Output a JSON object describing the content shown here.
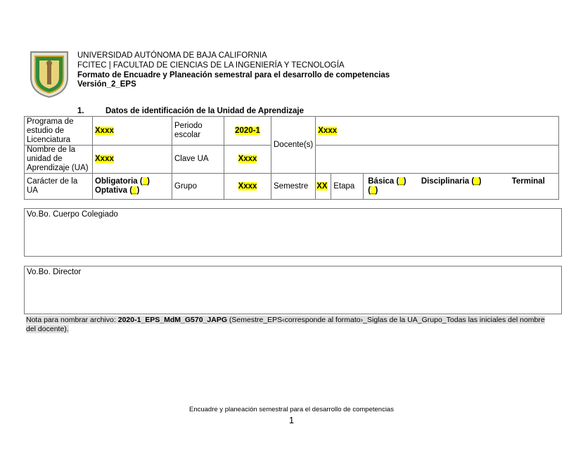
{
  "header": {
    "logo": "UABC coat of arms",
    "line1": "UNIVERSIDAD AUTÓNOMA DE BAJA CALIFORNIA",
    "line2": "FCITEC | FACULTAD DE CIENCIAS DE LA INGENIERÍA Y TECNOLOGÍA",
    "line3": "Formato de Encuadre y Planeación semestral para el desarrollo de competencias",
    "line4": "Versión_2_EPS"
  },
  "section": {
    "number": "1.",
    "title": "Datos de identificación de la Unidad de Aprendizaje"
  },
  "table": {
    "programa_label": "Programa de estudio de Licenciatura",
    "programa_value": "Xxxx",
    "periodo_label": "Periodo escolar",
    "periodo_value": "2020-1",
    "docente_label": "Docente(s)",
    "docente_value": "Xxxx",
    "nombre_label": "Nombre de la unidad de Aprendizaje (UA)",
    "nombre_value": "Xxxx",
    "clave_label": "Clave UA",
    "clave_value": "Xxxx",
    "caracter_label": "Carácter de la UA",
    "obligatoria": "Obligatoria (",
    "optativa": "Optativa (",
    "close": ")",
    "blank": "_",
    "grupo_label": "Grupo",
    "grupo_value": "Xxxx",
    "semestre_label": "Semestre",
    "semestre_value": "XX",
    "etapa_label": "Etapa",
    "basica": "Básica (",
    "disciplinaria": "Disciplinaria (",
    "terminal": "Terminal ("
  },
  "vobo_cuerpo": "Vo.Bo. Cuerpo Colegiado",
  "vobo_director": "Vo.Bo. Director",
  "note": {
    "prefix": "Nota para nombrar archivo: ",
    "example": "2020-1_EPS_MdM_G570_JAPG",
    "suffix": " (Semestre_EPS‹corresponde al formato›_Siglas de la UA_Grupo_Todas las iniciales del nombre del docente)."
  },
  "footer": {
    "text": "Encuadre y planeación semestral para el desarrollo de competencias",
    "page": "1"
  }
}
